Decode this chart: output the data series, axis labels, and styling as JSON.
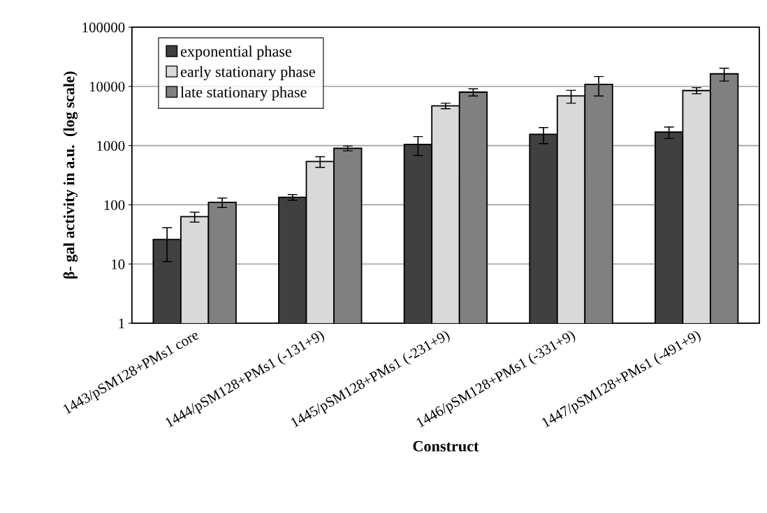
{
  "chart_data": {
    "type": "bar",
    "xlabel": "Construct",
    "ylabel": "β- gal activity in a.u.  (log scale)",
    "categories": [
      "1443/pSM128+PMs1 core",
      "1444/pSM128+PMs1 (-131+9)",
      "1445/pSM128+PMs1 (-231+9)",
      "1446/pSM128+PMs1 (-331+9)",
      "1447/pSM128+PMs1 (-491+9)"
    ],
    "series": [
      {
        "name": "exponential phase",
        "color": "#404040",
        "values": [
          26,
          134,
          1050,
          1550,
          1690
        ],
        "errors": [
          15,
          15,
          370,
          470,
          370
        ]
      },
      {
        "name": "early stationary phase",
        "color": "#d9d9d9",
        "values": [
          63,
          540,
          4700,
          6900,
          8500
        ],
        "errors": [
          12,
          110,
          500,
          1700,
          1000
        ]
      },
      {
        "name": "late stationary phase",
        "color": "#808080",
        "values": [
          110,
          900,
          8000,
          10800,
          16300
        ],
        "errors": [
          20,
          85,
          1100,
          3900,
          4000
        ]
      }
    ],
    "log": true,
    "ylim": [
      1,
      100000
    ],
    "yticks": [
      1,
      10,
      100,
      1000,
      10000,
      100000
    ],
    "grid": "y",
    "legend": "top left"
  }
}
